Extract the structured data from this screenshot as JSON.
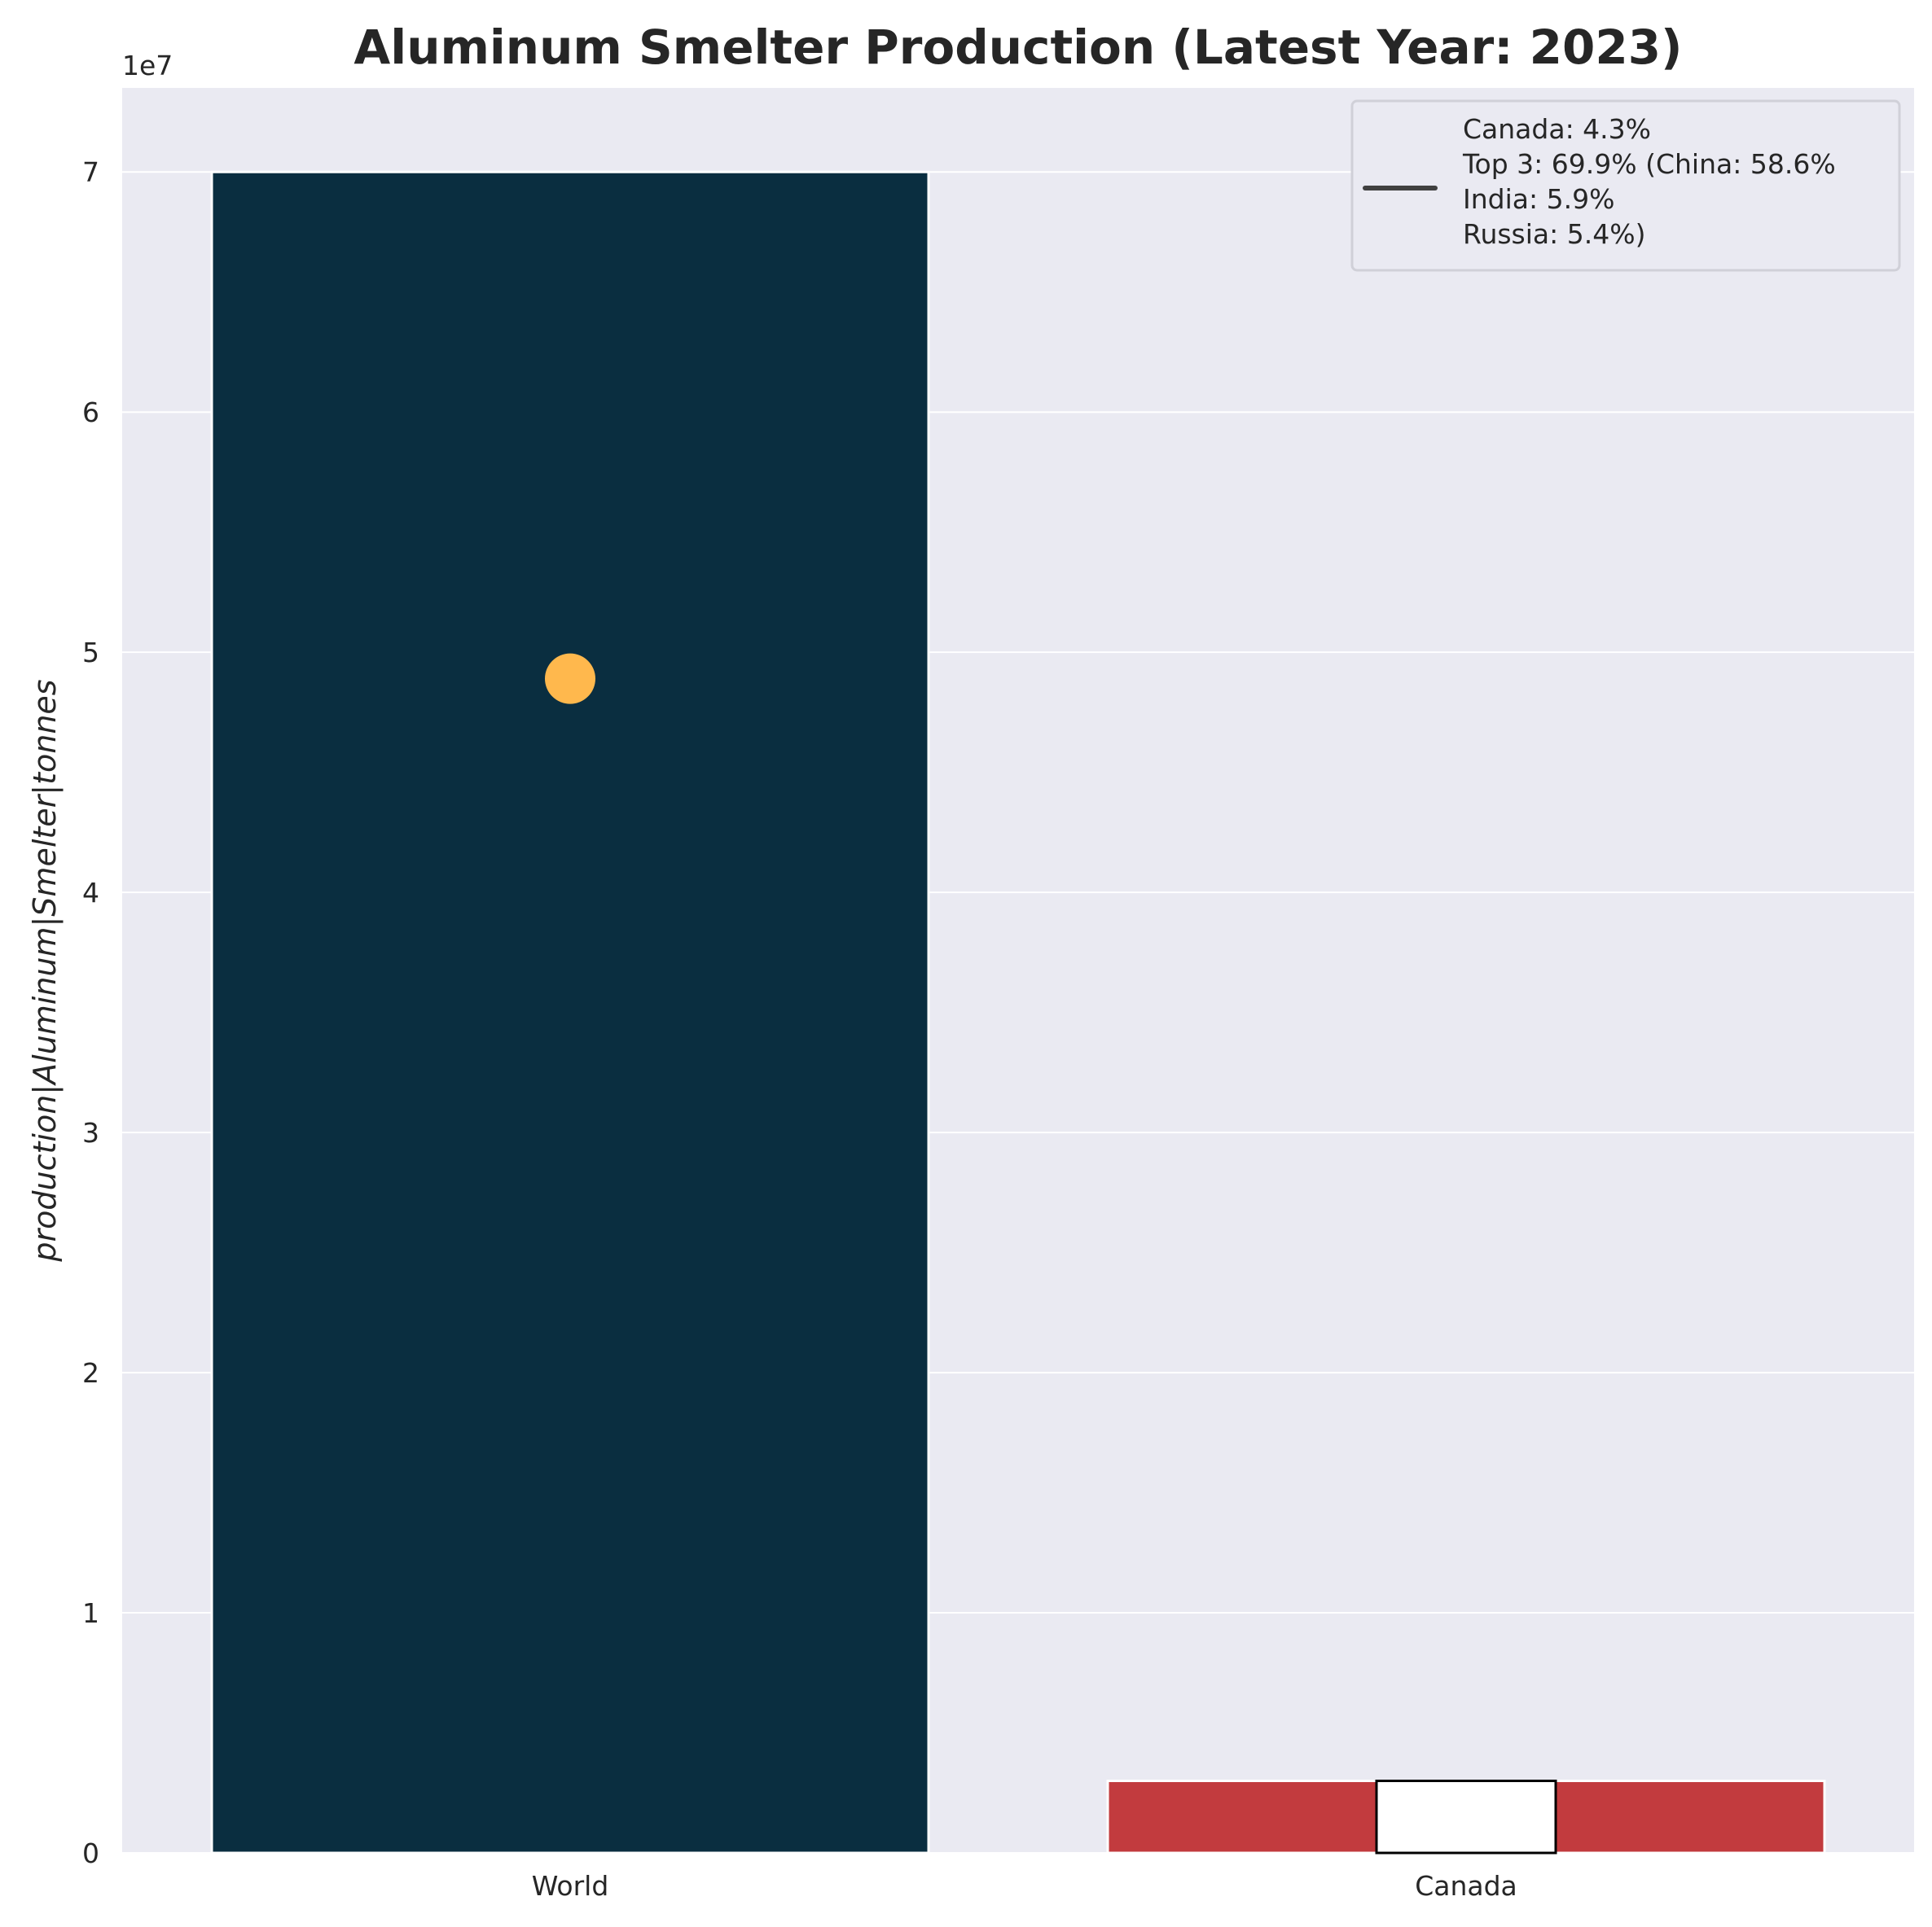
{
  "chart_data": {
    "type": "bar",
    "title": "Aluminum Smelter Production (Latest Year: 2023)",
    "xlabel": "",
    "ylabel": "production|Aluminum|Smelter|tonnes",
    "scale_label": "1e7",
    "ylim": [
      0,
      73500000
    ],
    "yticks": [
      0,
      1,
      2,
      3,
      4,
      5,
      6,
      7
    ],
    "categories": [
      "World",
      "Canada"
    ],
    "values": [
      70000000,
      3000000
    ],
    "bar_colors": [
      "#0a2e40",
      "#c23b3e"
    ],
    "marker": {
      "category": "World",
      "value": 48900000,
      "color": "#ffb84d"
    },
    "inner_box": {
      "category": "Canada",
      "value": 3000000,
      "color": "#ffffff",
      "edge": "#000000"
    },
    "legend": {
      "placement": "top-right",
      "line_color": "#404040",
      "lines": [
        "Canada: 4.3%",
        "Top 3: 69.9% (China: 58.6%",
        "India: 5.9%",
        "Russia: 5.4%)"
      ]
    },
    "grid": true,
    "background": "#eaeaf2"
  }
}
